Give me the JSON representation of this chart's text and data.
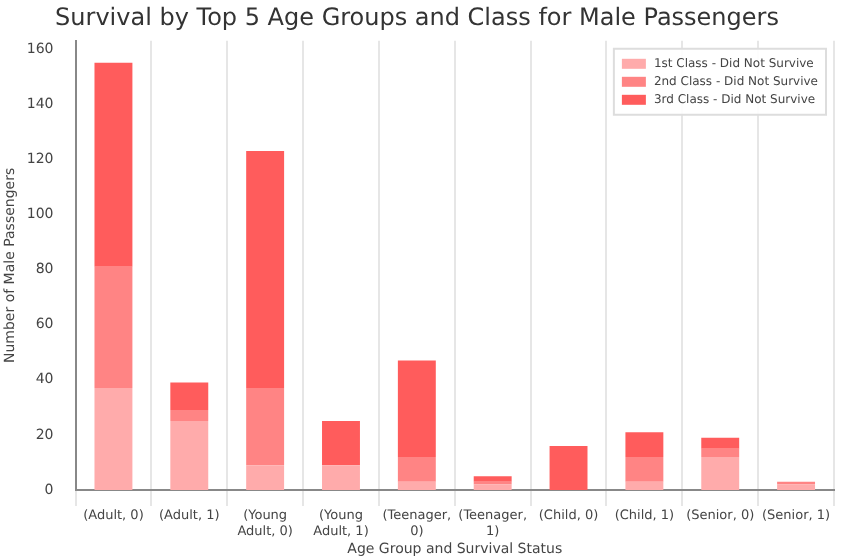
{
  "chart_data": {
    "type": "bar",
    "title": "Survival by Top 5 Age Groups and Class for Male Passengers",
    "xlabel": "Age Group and Survival Status",
    "ylabel": "Number of Male Passengers",
    "categories": [
      "(Adult, 0)",
      "(Adult, 1)",
      "(Young Adult, 0)",
      "(Young Adult, 1)",
      "(Teenager, 0)",
      "(Teenager, 1)",
      "(Child, 0)",
      "(Child, 1)",
      "(Senior, 0)",
      "(Senior, 1)"
    ],
    "stacked": true,
    "series": [
      {
        "name": "1st Class - Did Not Survive",
        "color": "#ffabab",
        "values": [
          37,
          25,
          9,
          9,
          3,
          2,
          0,
          3,
          12,
          2
        ]
      },
      {
        "name": "2nd Class - Did Not Survive",
        "color": "#ff8484",
        "values": [
          44,
          4,
          28,
          0,
          9,
          1,
          0,
          9,
          3,
          1
        ]
      },
      {
        "name": "3rd Class - Did Not Survive",
        "color": "#ff5c5c",
        "values": [
          74,
          10,
          86,
          16,
          35,
          2,
          16,
          9,
          4,
          0
        ]
      }
    ],
    "ylim": [
      0,
      163
    ],
    "yticks": [
      0,
      20,
      40,
      60,
      80,
      100,
      120,
      140,
      160
    ],
    "grid": "x",
    "legend": "top right"
  }
}
